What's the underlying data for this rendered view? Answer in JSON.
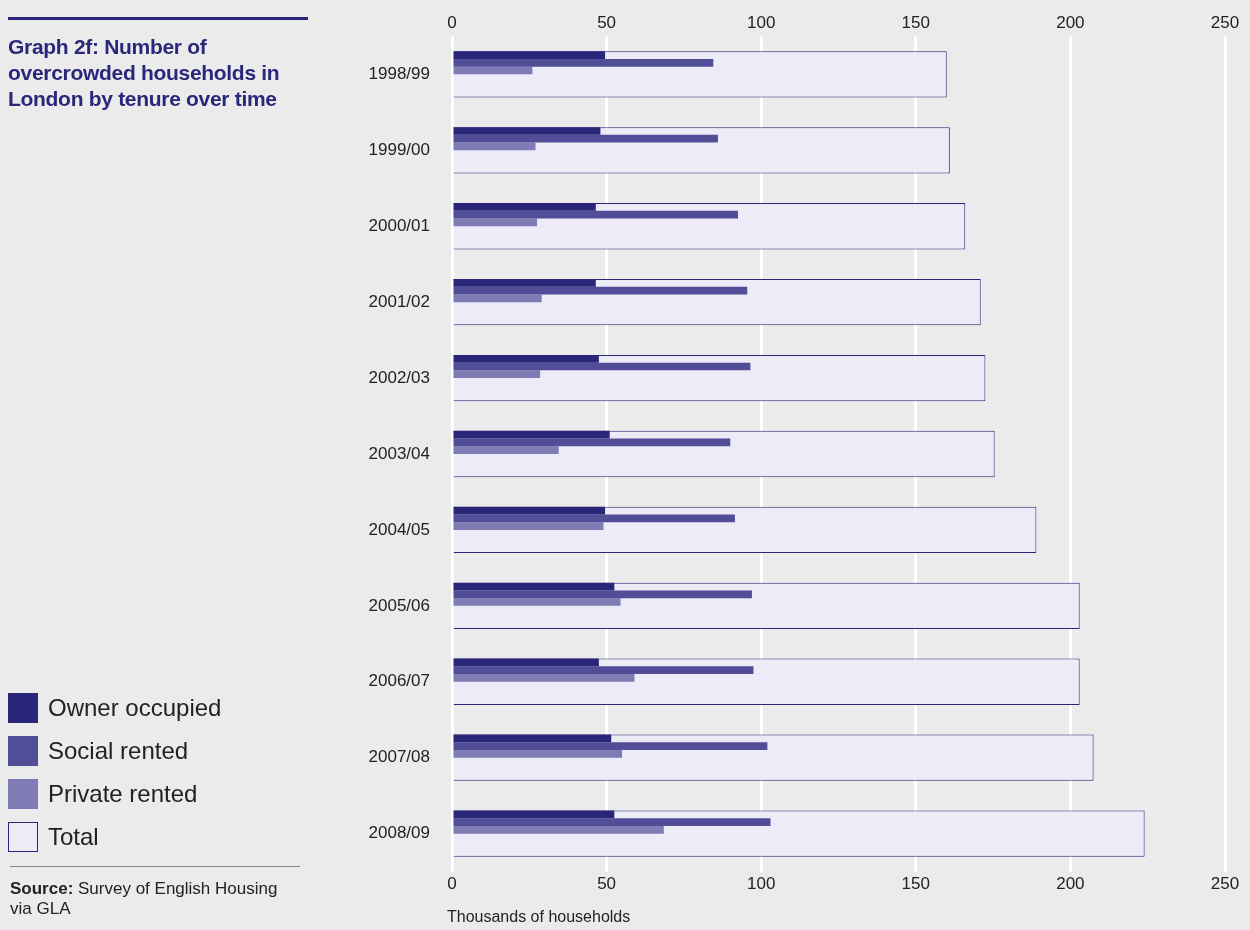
{
  "chart_data": {
    "type": "bar",
    "orientation": "horizontal",
    "title": "Graph 2f: Number of overcrowded households in London by tenure over time",
    "xlabel": "Thousands of households",
    "categories": [
      "1998/99",
      "1999/00",
      "2000/01",
      "2001/02",
      "2002/03",
      "2003/04",
      "2004/05",
      "2005/06",
      "2006/07",
      "2007/08",
      "2008/09"
    ],
    "series": [
      {
        "name": "Owner occupied",
        "color": "#2a2679",
        "values": [
          49.5,
          48,
          46.5,
          46.5,
          47.5,
          51,
          49.5,
          52.5,
          47.5,
          51.5,
          52.5
        ]
      },
      {
        "name": "Social rented",
        "color": "#514d97",
        "values": [
          84.5,
          86,
          92.5,
          95.5,
          96.5,
          90,
          91.5,
          97,
          97.5,
          102,
          103
        ]
      },
      {
        "name": "Private rented",
        "color": "#7f7bb4",
        "values": [
          26,
          27,
          27.5,
          29,
          28.5,
          34.5,
          49,
          54.5,
          59,
          55,
          68.5
        ]
      },
      {
        "name": "Total",
        "color": "#ecebf7",
        "values": [
          160,
          161,
          166,
          171,
          172.5,
          175.5,
          189,
          203,
          203,
          207.5,
          224
        ]
      }
    ],
    "xlim": [
      0,
      250
    ],
    "xticks": [
      0,
      50,
      100,
      150,
      200,
      250
    ],
    "x2lim": [
      0,
      250
    ],
    "x2ticks": [
      0,
      50,
      100,
      150,
      200,
      250
    ],
    "grid": "x",
    "legend": "left",
    "annotations": [
      "Source: Survey of English Housing via GLA"
    ]
  }
}
